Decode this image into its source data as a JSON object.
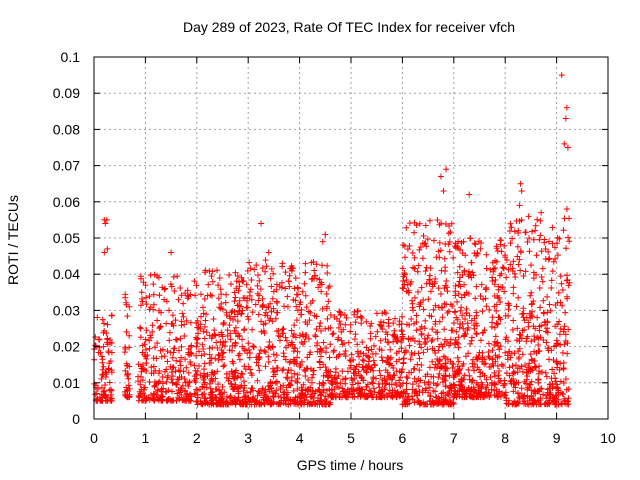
{
  "chart_data": {
    "type": "scatter",
    "title": "Day 289 of 2023, Rate Of TEC Index for receiver vfch",
    "xlabel": "GPS time / hours",
    "ylabel": "ROTI / TECUs",
    "xlim": [
      0,
      10
    ],
    "ylim": [
      0,
      0.1
    ],
    "x_ticks": [
      0,
      1,
      2,
      3,
      4,
      5,
      6,
      7,
      8,
      9,
      10
    ],
    "x_tick_labels": [
      "0",
      "1",
      "2",
      "3",
      "4",
      "5",
      "6",
      "7",
      "8",
      "9",
      "10"
    ],
    "y_ticks": [
      0,
      0.01,
      0.02,
      0.03,
      0.04,
      0.05,
      0.06,
      0.07,
      0.08,
      0.09,
      0.1
    ],
    "y_tick_labels": [
      "0",
      "0.01",
      "0.02",
      "0.03",
      "0.04",
      "0.05",
      "0.06",
      "0.07",
      "0.08",
      "0.09",
      "0.1"
    ],
    "grid": true,
    "marker": "+",
    "color": "#ff0000",
    "outliers": [
      {
        "x": 0.2,
        "y": 0.055
      },
      {
        "x": 0.22,
        "y": 0.054
      },
      {
        "x": 0.25,
        "y": 0.055
      },
      {
        "x": 0.2,
        "y": 0.046
      },
      {
        "x": 0.26,
        "y": 0.047
      },
      {
        "x": 1.5,
        "y": 0.046
      },
      {
        "x": 3.25,
        "y": 0.054
      },
      {
        "x": 3.4,
        "y": 0.046
      },
      {
        "x": 4.5,
        "y": 0.051
      },
      {
        "x": 4.45,
        "y": 0.049
      },
      {
        "x": 6.85,
        "y": 0.069
      },
      {
        "x": 6.75,
        "y": 0.067
      },
      {
        "x": 6.8,
        "y": 0.063
      },
      {
        "x": 7.3,
        "y": 0.062
      },
      {
        "x": 8.3,
        "y": 0.065
      },
      {
        "x": 8.32,
        "y": 0.063
      },
      {
        "x": 8.28,
        "y": 0.059
      },
      {
        "x": 8.7,
        "y": 0.057
      },
      {
        "x": 9.1,
        "y": 0.095
      },
      {
        "x": 9.2,
        "y": 0.086
      },
      {
        "x": 9.18,
        "y": 0.083
      },
      {
        "x": 9.15,
        "y": 0.076
      },
      {
        "x": 9.22,
        "y": 0.075
      },
      {
        "x": 9.2,
        "y": 0.058
      }
    ],
    "segments": [
      {
        "x_start": 0.0,
        "x_end": 0.35,
        "y_low": 0.005,
        "y_high": 0.03,
        "count": 90
      },
      {
        "x_start": 0.6,
        "x_end": 0.7,
        "y_low": 0.006,
        "y_high": 0.035,
        "count": 35
      },
      {
        "x_start": 0.85,
        "x_end": 1.9,
        "y_low": 0.005,
        "y_high": 0.04,
        "count": 280
      },
      {
        "x_start": 1.95,
        "x_end": 3.0,
        "y_low": 0.004,
        "y_high": 0.042,
        "count": 380
      },
      {
        "x_start": 3.0,
        "x_end": 4.6,
        "y_low": 0.004,
        "y_high": 0.044,
        "count": 520
      },
      {
        "x_start": 4.6,
        "x_end": 6.0,
        "y_low": 0.006,
        "y_high": 0.03,
        "count": 360
      },
      {
        "x_start": 6.0,
        "x_end": 7.0,
        "y_low": 0.004,
        "y_high": 0.055,
        "count": 380
      },
      {
        "x_start": 7.0,
        "x_end": 8.0,
        "y_low": 0.006,
        "y_high": 0.05,
        "count": 380
      },
      {
        "x_start": 8.0,
        "x_end": 9.25,
        "y_low": 0.004,
        "y_high": 0.056,
        "count": 430
      }
    ]
  }
}
